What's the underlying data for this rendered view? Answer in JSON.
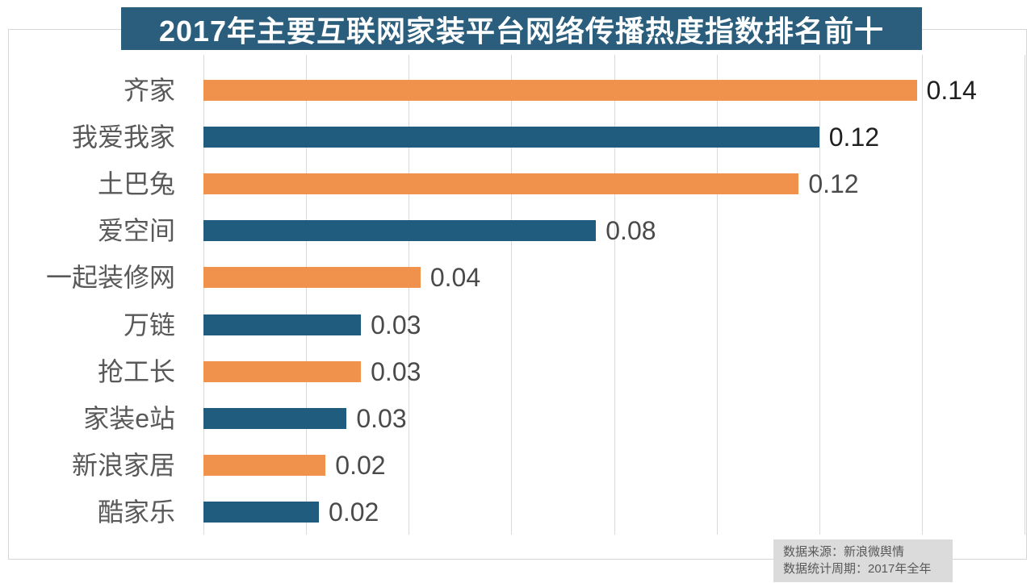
{
  "title": "2017年主要互联网家装平台网络传播热度指数排名前十",
  "colors": {
    "title_bg": "#2A5E7C",
    "title_text": "#FFFFFF",
    "bar_orange": "#F0914C",
    "bar_blue": "#1F5C7D",
    "gridline": "#D9D9D9",
    "chart_border": "#D6D6D6",
    "category_label": "#595959",
    "value_label_dark": "#1F1F1F",
    "value_label_normal": "#4A4A4A",
    "source_bg": "#DBDBDB",
    "source_text": "#595959"
  },
  "chart_data": {
    "type": "bar",
    "orientation": "horizontal",
    "title": "2017年主要互联网家装平台网络传播热度指数排名前十",
    "categories": [
      "齐家",
      "我爱我家",
      "土巴兔",
      "爱空间",
      "一起装修网",
      "万链",
      "抢工长",
      "家装e站",
      "新浪家居",
      "酷家乐"
    ],
    "values": [
      0.14,
      0.12,
      0.12,
      0.08,
      0.04,
      0.03,
      0.03,
      0.03,
      0.02,
      0.02
    ],
    "value_labels": [
      "0.14",
      "0.12",
      "0.12",
      "0.08",
      "0.04",
      "0.03",
      "0.03",
      "0.03",
      "0.02",
      "0.02"
    ],
    "bar_fractions": [
      0.139,
      0.12,
      0.116,
      0.0765,
      0.0423,
      0.0307,
      0.0307,
      0.0279,
      0.0238,
      0.0225
    ],
    "bar_colors": [
      "#F0914C",
      "#1F5C7D",
      "#F0914C",
      "#1F5C7D",
      "#F0914C",
      "#1F5C7D",
      "#F0914C",
      "#1F5C7D",
      "#F0914C",
      "#1F5C7D"
    ],
    "value_label_colors": [
      "#1F1F1F",
      "#1F1F1F",
      "#4A4A4A",
      "#4A4A4A",
      "#4A4A4A",
      "#4A4A4A",
      "#4A4A4A",
      "#4A4A4A",
      "#4A4A4A",
      "#4A4A4A"
    ],
    "xlabel": "",
    "ylabel": "",
    "xlim": [
      0,
      0.16
    ],
    "gridline_interval": 0.02,
    "grid": true,
    "legend": false
  },
  "source": {
    "line1": "数据来源：新浪微舆情",
    "line2": "数据统计周期：2017年全年"
  }
}
